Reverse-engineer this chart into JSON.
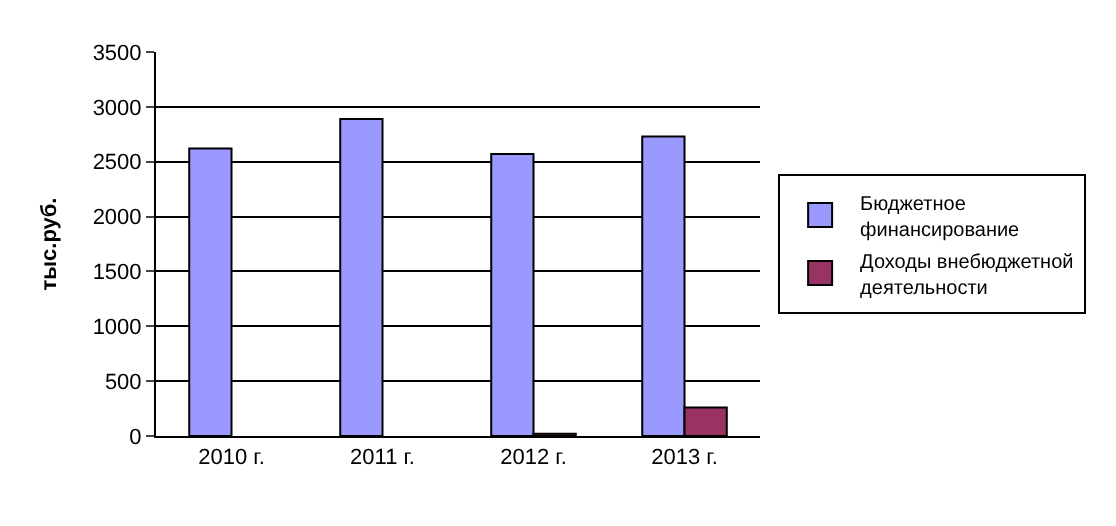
{
  "chart_data": {
    "type": "bar",
    "ylabel": "тыс.руб.",
    "categories": [
      "2010 г.",
      "2011 г.",
      "2012 г.",
      "2013 г."
    ],
    "series": [
      {
        "name": "Бюджетное финансирование",
        "color": "#9999ff",
        "values": [
          2620,
          2890,
          2570,
          2730
        ]
      },
      {
        "name": "Доходы внебюджетной деятельности",
        "color": "#993366",
        "values": [
          null,
          null,
          20,
          260
        ]
      }
    ],
    "ylim": [
      0,
      3500
    ],
    "yticks": [
      0,
      500,
      1000,
      1500,
      2000,
      2500,
      3000,
      3500
    ],
    "grid": "y",
    "legend": "right"
  }
}
